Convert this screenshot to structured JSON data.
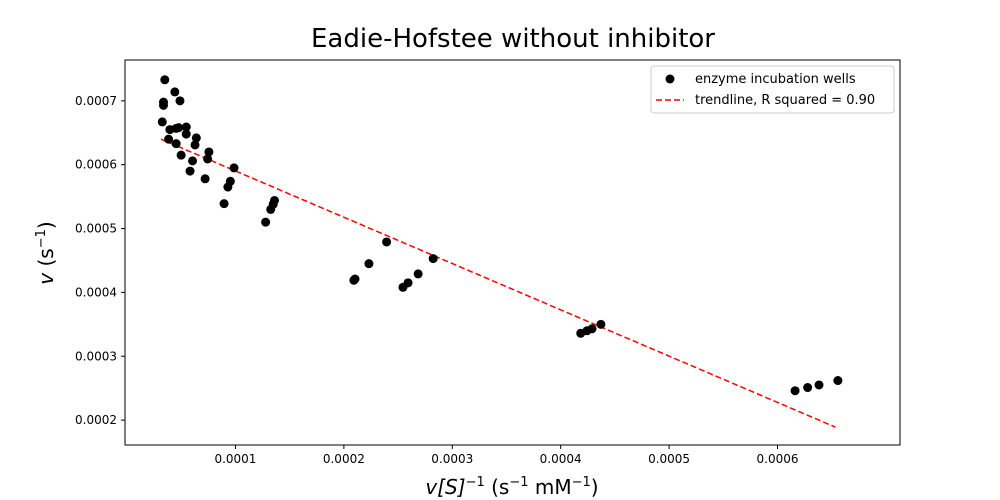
{
  "chart_data": {
    "type": "scatter",
    "title": "Eadie-Hofstee without inhibitor",
    "xlabel": {
      "base": "v",
      "bracket_open": "[",
      "s": "S",
      "bracket_close": "]",
      "exp": "−1",
      "units_pre": " (s",
      "units_exp1": "−1",
      "units_mid": " mM",
      "units_exp2": "−1",
      "units_post": ")"
    },
    "ylabel": {
      "base": "v",
      "units_pre": " (s",
      "units_exp": "−1",
      "units_post": ")"
    },
    "xlim": [
      -1.9e-06,
      0.000713
    ],
    "ylim": [
      0.000161,
      0.000764
    ],
    "xticks": [
      {
        "value": 0.0001,
        "label": "0.0001"
      },
      {
        "value": 0.0002,
        "label": "0.0002"
      },
      {
        "value": 0.0003,
        "label": "0.0003"
      },
      {
        "value": 0.0004,
        "label": "0.0004"
      },
      {
        "value": 0.0005,
        "label": "0.0005"
      },
      {
        "value": 0.0006,
        "label": "0.0006"
      }
    ],
    "yticks": [
      {
        "value": 0.0002,
        "label": "0.0002"
      },
      {
        "value": 0.0003,
        "label": "0.0003"
      },
      {
        "value": 0.0004,
        "label": "0.0004"
      },
      {
        "value": 0.0005,
        "label": "0.0005"
      },
      {
        "value": 0.0006,
        "label": "0.0006"
      },
      {
        "value": 0.0007,
        "label": "0.0007"
      }
    ],
    "grid": false,
    "legend_position": "top-right",
    "series": [
      {
        "name": "enzyme incubation wells",
        "kind": "scatter",
        "color": "#000000",
        "points": [
          [
            3.48e-05,
            0.000733
          ],
          [
            3.36e-05,
            0.000698
          ],
          [
            3.36e-05,
            0.000693
          ],
          [
            3.25e-05,
            0.000667
          ],
          [
            4.41e-05,
            0.000714
          ],
          [
            4.88e-05,
            0.0007
          ],
          [
            3.95e-05,
            0.000655
          ],
          [
            4.53e-05,
            0.000657
          ],
          [
            4.76e-05,
            0.000658
          ],
          [
            5.46e-05,
            0.000659
          ],
          [
            5.46e-05,
            0.000648
          ],
          [
            6.39e-05,
            0.000642
          ],
          [
            3.83e-05,
            0.00064
          ],
          [
            4.53e-05,
            0.000633
          ],
          [
            6.27e-05,
            0.000631
          ],
          [
            7.55e-05,
            0.00062
          ],
          [
            4.99e-05,
            0.000615
          ],
          [
            7.43e-05,
            0.000609
          ],
          [
            6.04e-05,
            0.000606
          ],
          [
            9.87e-05,
            0.000595
          ],
          [
            5.81e-05,
            0.00059
          ],
          [
            7.2e-05,
            0.000578
          ],
          [
            9.53e-05,
            0.000574
          ],
          [
            9.3e-05,
            0.000565
          ],
          [
            8.95e-05,
            0.000539
          ],
          [
            0.000136,
            0.000544
          ],
          [
            0.0001348,
            0.000538
          ],
          [
            0.0001325,
            0.00053
          ],
          [
            0.0001278,
            0.00051
          ],
          [
            0.0002394,
            0.000479
          ],
          [
            0.0002824,
            0.000453
          ],
          [
            0.0002231,
            0.000445
          ],
          [
            0.0002685,
            0.000429
          ],
          [
            0.0002103,
            0.000421
          ],
          [
            0.0002092,
            0.000419
          ],
          [
            0.0002592,
            0.000415
          ],
          [
            0.0002545,
            0.000408
          ],
          [
            0.0004371,
            0.00035
          ],
          [
            0.0004289,
            0.000343
          ],
          [
            0.0004243,
            0.00034
          ],
          [
            0.0004185,
            0.000336
          ],
          [
            0.0006557,
            0.000262
          ],
          [
            0.0006383,
            0.000255
          ],
          [
            0.0006278,
            0.000251
          ],
          [
            0.0006162,
            0.000246
          ]
        ]
      },
      {
        "name": "trendline, R squared = 0.90",
        "kind": "line",
        "color": "#ff0000",
        "dash": "dashed",
        "points": [
          [
            3.13e-05,
            0.00064
          ],
          [
            0.0006534,
            0.000189
          ]
        ]
      }
    ]
  }
}
